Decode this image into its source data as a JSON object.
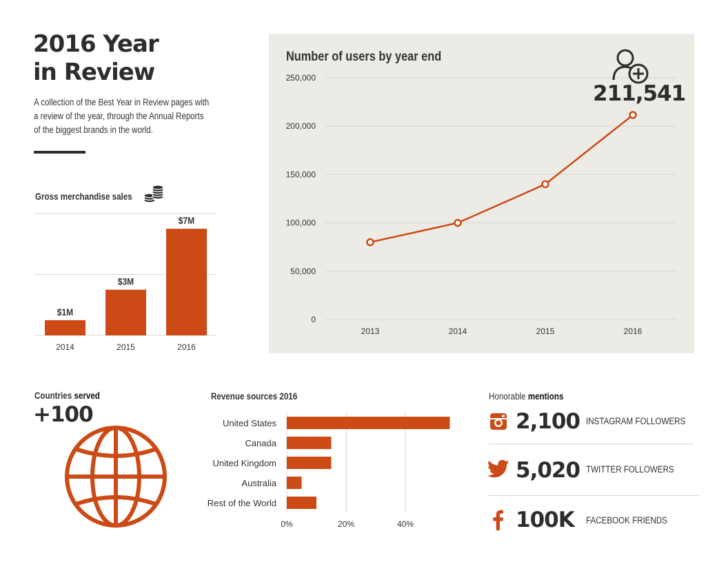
{
  "header": {
    "title_line1": "2016 Year",
    "title_line2": "in Review",
    "description_lines": [
      "A collection of the Best Year in Review pages with",
      "a review of the year, through the Annual Reports",
      "of the biggest brands in the world."
    ]
  },
  "colors": {
    "accent": "#cc4a16",
    "text_dark": "#2d2d2d",
    "panel_bg": "#ecebe5",
    "grid": "#d6d6d0"
  },
  "sales": {
    "title": "Gross merchandise sales",
    "icon": "coins-icon"
  },
  "users": {
    "title": "Number of users by year end",
    "highlight": "211,541",
    "icon": "add-user-icon"
  },
  "countries": {
    "label_plain": "Countries",
    "label_bold": "served",
    "value": "+100",
    "icon": "globe-icon"
  },
  "revenue": {
    "title": "Revenue sources 2016"
  },
  "mentions": {
    "label_plain": "Honorable",
    "label_bold": "mentions",
    "items": [
      {
        "icon": "instagram-icon",
        "value": "2,100",
        "label": "INSTAGRAM FOLLOWERS"
      },
      {
        "icon": "twitter-icon",
        "value": "5,020",
        "label": "TWITTER FOLLOWERS"
      },
      {
        "icon": "facebook-icon",
        "value": "100K",
        "label": "FACEBOOK FRIENDS"
      }
    ]
  },
  "chart_data": [
    {
      "id": "sales",
      "type": "bar",
      "title": "Gross merchandise sales",
      "categories": [
        "2014",
        "2015",
        "2016"
      ],
      "values": [
        1,
        3,
        7
      ],
      "data_labels": [
        "$1M",
        "$3M",
        "$7M"
      ],
      "ylabel": "$M",
      "ylim": [
        0,
        8
      ]
    },
    {
      "id": "users",
      "type": "line",
      "title": "Number of users by year end",
      "x": [
        "2013",
        "2014",
        "2015",
        "2016"
      ],
      "values": [
        80000,
        100000,
        140000,
        211541
      ],
      "ylim": [
        0,
        250000
      ],
      "yticks": [
        0,
        50000,
        100000,
        150000,
        200000,
        250000
      ],
      "ytick_labels": [
        "0",
        "50,000",
        "100,000",
        "150,000",
        "200,000",
        "250,000"
      ],
      "grid": true
    },
    {
      "id": "revenue",
      "type": "bar",
      "orientation": "horizontal",
      "title": "Revenue sources 2016",
      "categories": [
        "United States",
        "Canada",
        "United Kingdom",
        "Australia",
        "Rest of the World"
      ],
      "values": [
        55,
        15,
        15,
        5,
        10
      ],
      "xlim": [
        0,
        60
      ],
      "xticks": [
        0,
        20,
        40
      ],
      "xtick_labels": [
        "0%",
        "20%",
        "40%"
      ],
      "grid": true
    }
  ]
}
